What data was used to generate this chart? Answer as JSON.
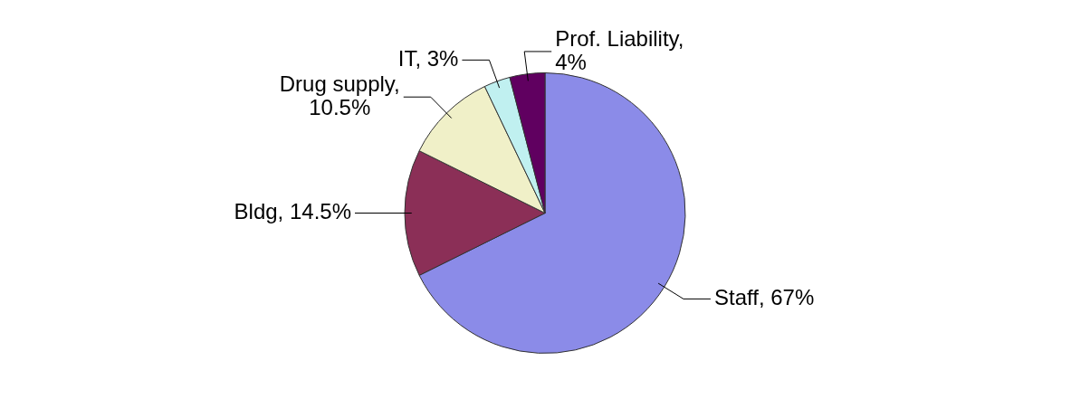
{
  "chart_data": {
    "type": "pie",
    "categories": [
      "Staff, 67%",
      "Bldg, 14.5%",
      "Drug supply, 10.5%",
      "IT, 3%",
      "Prof. Liability, 4%"
    ],
    "values": [
      67,
      14.5,
      10.5,
      3,
      4
    ],
    "colors": [
      "#8b8be8",
      "#8b2f57",
      "#f0f0c8",
      "#c0f0f0",
      "#600060"
    ]
  }
}
